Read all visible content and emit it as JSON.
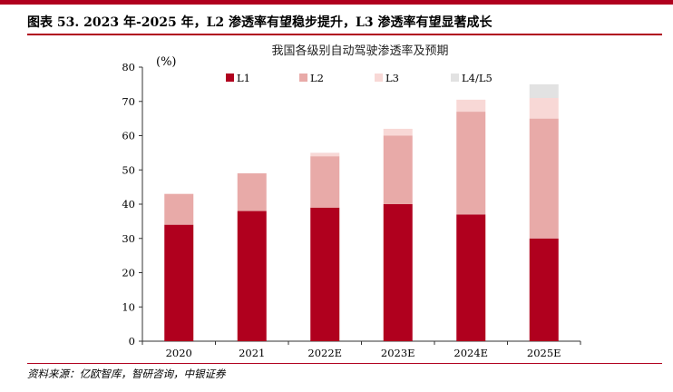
{
  "header": {
    "title": "图表 53. 2023 年-2025 年，L2 渗透率有望稳步提升，L3 渗透率有望显著成长"
  },
  "source": "资料来源：亿欧智库，智研咨询，中银证券",
  "colors": {
    "brand": "#b0001e",
    "L1": "#b0001e",
    "L2": "#e8aaa8",
    "L3": "#f8d8d6",
    "L4/L5": "#e2e2e2"
  },
  "chart_data": {
    "type": "bar",
    "stacked": true,
    "title": "我国各级别自动驾驶渗透率及预期",
    "ylabel": "(%)",
    "xlabel": "",
    "categories": [
      "2020",
      "2021",
      "2022E",
      "2023E",
      "2024E",
      "2025E"
    ],
    "ylim": [
      0,
      80
    ],
    "yticks": [
      0,
      10,
      20,
      30,
      40,
      50,
      60,
      70,
      80
    ],
    "grid": false,
    "legend_position": "top-right",
    "series": [
      {
        "name": "L1",
        "values": [
          34,
          38,
          39,
          40,
          37,
          30
        ]
      },
      {
        "name": "L2",
        "values": [
          9,
          11,
          15,
          20,
          30,
          35
        ]
      },
      {
        "name": "L3",
        "values": [
          0,
          0,
          1,
          2,
          3.5,
          6
        ]
      },
      {
        "name": "L4/L5",
        "values": [
          0,
          0,
          0,
          0,
          0,
          4
        ]
      }
    ]
  }
}
